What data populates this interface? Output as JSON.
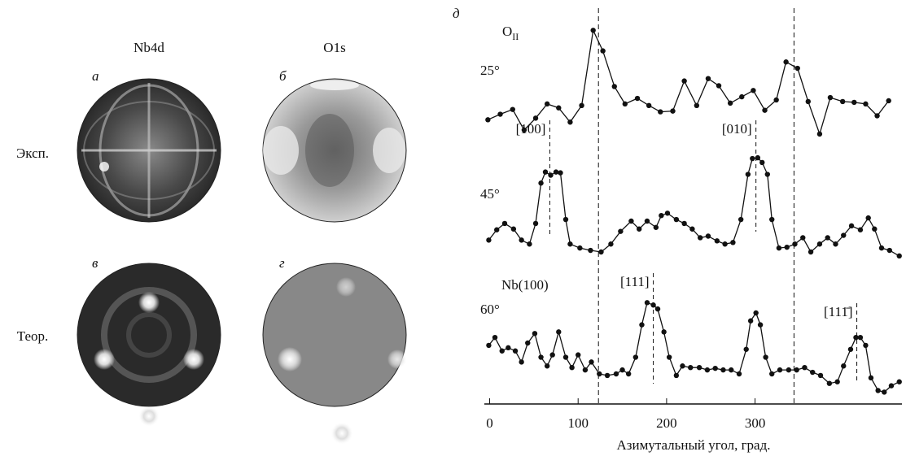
{
  "figure": {
    "columns": [
      "Nb4d",
      "O1s"
    ],
    "rows": [
      "Эксп.",
      "Теор."
    ],
    "panels": [
      "а",
      "б",
      "в",
      "г"
    ]
  },
  "chart_data": {
    "type": "line",
    "panel": "д",
    "xlabel": "Азимутальный угол, град.",
    "xlim": [
      -6,
      466
    ],
    "xticks": [
      0,
      100,
      200,
      300
    ],
    "ylim": [
      0,
      50
    ],
    "vlines": [
      123,
      344
    ],
    "annotations": [
      {
        "text": "O",
        "sub": "II"
      },
      {
        "text": "Nb(100)"
      }
    ],
    "series": [
      {
        "name": "25°",
        "color": "#111111",
        "x": [
          -2,
          12,
          26,
          39,
          52,
          65,
          78,
          91,
          104,
          117,
          128,
          141,
          153,
          167,
          180,
          193,
          207,
          220,
          234,
          247,
          259,
          272,
          285,
          298,
          311,
          324,
          335,
          348,
          360,
          373,
          385,
          399,
          412,
          425,
          438,
          451
        ],
        "y": [
          35.9,
          36.6,
          37.2,
          34.6,
          36.1,
          37.9,
          37.4,
          35.6,
          37.7,
          47.2,
          44.6,
          40.1,
          37.9,
          38.6,
          37.7,
          36.9,
          37.0,
          40.8,
          37.7,
          41.1,
          40.2,
          38.0,
          38.8,
          39.6,
          37.1,
          38.4,
          43.2,
          42.4,
          38.2,
          34.1,
          38.7,
          38.2,
          38.1,
          37.9,
          36.4,
          38.3
        ],
        "peaks": []
      },
      {
        "name": "45°",
        "color": "#111111",
        "x": [
          -1,
          8,
          17,
          27,
          36,
          45,
          52,
          58,
          63,
          69,
          75,
          80,
          86,
          91,
          102,
          114,
          126,
          137,
          148,
          160,
          169,
          178,
          188,
          194,
          201,
          211,
          220,
          229,
          238,
          247,
          257,
          266,
          275,
          284,
          292,
          297,
          303,
          308,
          314,
          319,
          327,
          336,
          345,
          354,
          363,
          373,
          382,
          391,
          400,
          409,
          419,
          428,
          435,
          443,
          452,
          463
        ],
        "y": [
          20.7,
          22.0,
          22.8,
          22.1,
          20.7,
          20.2,
          22.8,
          27.9,
          29.3,
          28.9,
          29.3,
          29.2,
          23.3,
          20.2,
          19.7,
          19.4,
          19.2,
          20.2,
          21.8,
          23.1,
          22.1,
          23.1,
          22.3,
          23.8,
          24.1,
          23.3,
          22.8,
          22.1,
          21.0,
          21.2,
          20.6,
          20.2,
          20.4,
          23.3,
          29.0,
          31.0,
          31.1,
          30.5,
          29.0,
          23.3,
          19.7,
          19.8,
          20.2,
          21.0,
          19.2,
          20.2,
          21.0,
          20.2,
          21.3,
          22.5,
          22.0,
          23.5,
          22.1,
          19.7,
          19.4,
          18.7
        ],
        "peaks": [
          {
            "label": "[100]",
            "x": 68
          },
          {
            "label": "[010]",
            "x": 301
          }
        ]
      },
      {
        "name": "60°",
        "color": "#111111",
        "x": [
          -1,
          6,
          14,
          21,
          29,
          36,
          43,
          51,
          58,
          65,
          71,
          78,
          86,
          93,
          100,
          108,
          115,
          124,
          133,
          143,
          150,
          157,
          165,
          172,
          178,
          185,
          190,
          197,
          203,
          211,
          218,
          227,
          237,
          246,
          255,
          264,
          273,
          282,
          290,
          295,
          301,
          306,
          312,
          319,
          328,
          338,
          347,
          356,
          365,
          374,
          384,
          393,
          400,
          408,
          414,
          419,
          425,
          431,
          439,
          446,
          454,
          463
        ],
        "y": [
          7.4,
          8.4,
          6.7,
          7.1,
          6.7,
          5.3,
          7.7,
          8.9,
          5.9,
          4.8,
          6.2,
          9.1,
          5.9,
          4.6,
          6.2,
          4.3,
          5.3,
          3.8,
          3.6,
          3.8,
          4.3,
          3.8,
          5.9,
          10.0,
          12.8,
          12.5,
          12.0,
          9.1,
          5.9,
          3.6,
          4.8,
          4.6,
          4.6,
          4.3,
          4.5,
          4.3,
          4.3,
          3.8,
          6.9,
          10.5,
          11.5,
          10.0,
          5.9,
          3.8,
          4.3,
          4.3,
          4.3,
          4.6,
          4.0,
          3.6,
          2.6,
          2.8,
          4.8,
          6.9,
          8.4,
          8.4,
          7.4,
          3.3,
          1.7,
          1.5,
          2.3,
          2.8
        ],
        "peaks": [
          {
            "label": "[111]",
            "x": 185
          },
          {
            "label": "[111̄]",
            "x": 415
          }
        ]
      }
    ]
  }
}
